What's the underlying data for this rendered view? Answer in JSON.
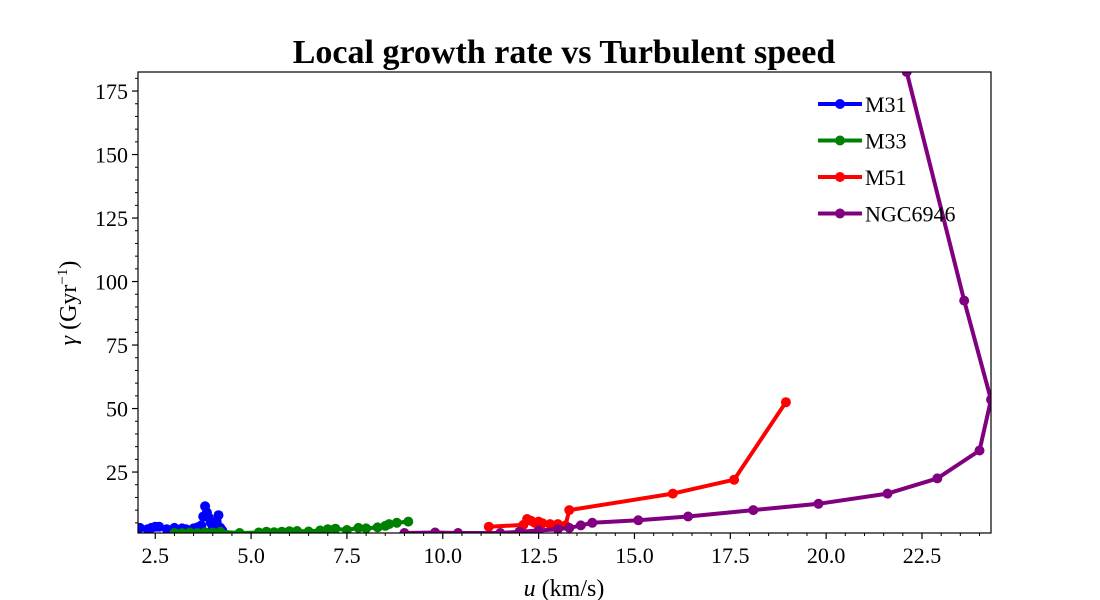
{
  "chart_data": {
    "type": "line",
    "title": "Local growth rate vs Turbulent speed",
    "xlabel": "u (km/s)",
    "ylabel": "γ (Gyr⁻¹)",
    "xlim": [
      2.05,
      24.3
    ],
    "ylim": [
      1.0,
      182.5
    ],
    "xticks": [
      "2.5",
      "5.0",
      "7.5",
      "10.0",
      "12.5",
      "15.0",
      "17.5",
      "20.0",
      "22.5"
    ],
    "yticks": [
      "25",
      "50",
      "75",
      "100",
      "125",
      "150",
      "175"
    ],
    "grid": false,
    "legend_position": "top-right",
    "series": [
      {
        "name": "M31",
        "color": "#0000ff",
        "x": [
          2.1,
          2.3,
          2.4,
          2.5,
          2.6,
          2.8,
          3.0,
          3.2,
          3.3,
          3.5,
          3.6,
          3.7,
          3.75,
          3.8,
          3.85,
          3.9,
          3.95,
          4.0,
          4.05,
          4.1,
          4.15,
          4.2,
          4.25
        ],
        "y": [
          3.0,
          2.5,
          3.0,
          3.5,
          3.5,
          2.5,
          3.0,
          2.8,
          2.5,
          2.8,
          3.2,
          4.0,
          7.5,
          11.5,
          9.0,
          7.0,
          5.0,
          3.5,
          3.0,
          5.5,
          8.0,
          3.0,
          2.0
        ]
      },
      {
        "name": "M33",
        "color": "#008000",
        "x": [
          3.0,
          3.2,
          3.4,
          3.6,
          3.8,
          4.0,
          4.2,
          4.7,
          5.2,
          5.4,
          5.6,
          5.8,
          6.0,
          6.2,
          6.5,
          6.8,
          7.0,
          7.2,
          7.5,
          7.8,
          8.0,
          8.3,
          8.5,
          8.6,
          8.8,
          9.1
        ],
        "y": [
          1.0,
          1.0,
          1.2,
          1.0,
          1.3,
          1.2,
          1.5,
          1.0,
          1.2,
          1.5,
          1.3,
          1.5,
          1.7,
          1.8,
          1.6,
          2.0,
          2.5,
          2.7,
          2.2,
          3.0,
          2.8,
          3.2,
          3.8,
          4.5,
          5.0,
          5.5
        ]
      },
      {
        "name": "M51",
        "color": "#ff0000",
        "x": [
          11.2,
          12.1,
          12.2,
          12.3,
          12.4,
          12.5,
          12.6,
          12.8,
          12.9,
          13.0,
          13.2,
          13.3,
          16.0,
          17.6,
          18.95
        ],
        "y": [
          3.5,
          4.2,
          6.5,
          5.8,
          5.0,
          5.5,
          4.8,
          4.5,
          3.8,
          4.5,
          4.0,
          10.0,
          16.5,
          22.0,
          52.5
        ]
      },
      {
        "name": "NGC6946",
        "color": "#800080",
        "x": [
          9.0,
          9.8,
          10.4,
          11.5,
          12.0,
          12.5,
          13.0,
          13.3,
          13.6,
          13.9,
          15.1,
          16.4,
          18.1,
          19.8,
          21.6,
          22.9,
          24.0,
          24.3,
          23.6,
          22.1
        ],
        "y": [
          1.0,
          1.2,
          1.0,
          1.0,
          1.5,
          2.0,
          2.5,
          3.0,
          4.0,
          5.0,
          6.0,
          7.5,
          10.0,
          12.5,
          16.5,
          22.5,
          33.5,
          53.5,
          92.5,
          182.5
        ]
      }
    ]
  }
}
